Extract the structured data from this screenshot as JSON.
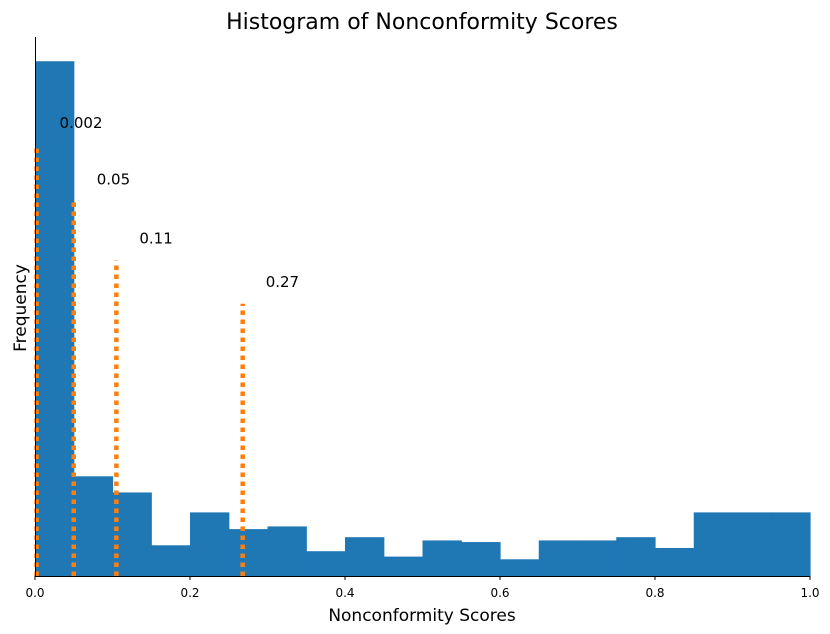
{
  "chart_data": {
    "type": "bar",
    "title": "Histogram of Nonconformity Scores",
    "xlabel": "Nonconformity Scores",
    "ylabel": "Frequency",
    "xlim": [
      0,
      1.0
    ],
    "ylim": [
      0,
      100
    ],
    "x_ticks": [
      "0.0",
      "0.2",
      "0.4",
      "0.6",
      "0.8",
      "1.0"
    ],
    "y_ticks_shown": false,
    "grid": false,
    "bar_color": "#1f77b4",
    "threshold_color": "#ff7f0e",
    "bins": [
      {
        "x0": 0.0,
        "x1": 0.05,
        "value": 95.5
      },
      {
        "x0": 0.05,
        "x1": 0.1,
        "value": 18.5
      },
      {
        "x0": 0.1,
        "x1": 0.15,
        "value": 15.5
      },
      {
        "x0": 0.15,
        "x1": 0.2,
        "value": 5.7
      },
      {
        "x0": 0.2,
        "x1": 0.25,
        "value": 11.8
      },
      {
        "x0": 0.25,
        "x1": 0.3,
        "value": 8.7
      },
      {
        "x0": 0.3,
        "x1": 0.35,
        "value": 9.2
      },
      {
        "x0": 0.35,
        "x1": 0.4,
        "value": 4.6
      },
      {
        "x0": 0.4,
        "x1": 0.45,
        "value": 7.2
      },
      {
        "x0": 0.45,
        "x1": 0.5,
        "value": 3.6
      },
      {
        "x0": 0.5,
        "x1": 0.55,
        "value": 6.6
      },
      {
        "x0": 0.55,
        "x1": 0.6,
        "value": 6.3
      },
      {
        "x0": 0.6,
        "x1": 0.65,
        "value": 3.1
      },
      {
        "x0": 0.65,
        "x1": 0.7,
        "value": 6.6
      },
      {
        "x0": 0.7,
        "x1": 0.75,
        "value": 6.6
      },
      {
        "x0": 0.75,
        "x1": 0.8,
        "value": 7.2
      },
      {
        "x0": 0.8,
        "x1": 0.85,
        "value": 5.2
      },
      {
        "x0": 0.85,
        "x1": 0.9,
        "value": 11.8
      },
      {
        "x0": 0.9,
        "x1": 0.95,
        "value": 11.8
      },
      {
        "x0": 0.95,
        "x1": 1.0,
        "value": 11.8
      }
    ],
    "thresholds": [
      {
        "x": 0.002,
        "height": 80,
        "label": "0.002"
      },
      {
        "x": 0.05,
        "height": 69.5,
        "label": "0.05"
      },
      {
        "x": 0.105,
        "height": 58.5,
        "label": "0.11"
      },
      {
        "x": 0.268,
        "height": 50.5,
        "label": "0.27"
      }
    ]
  }
}
